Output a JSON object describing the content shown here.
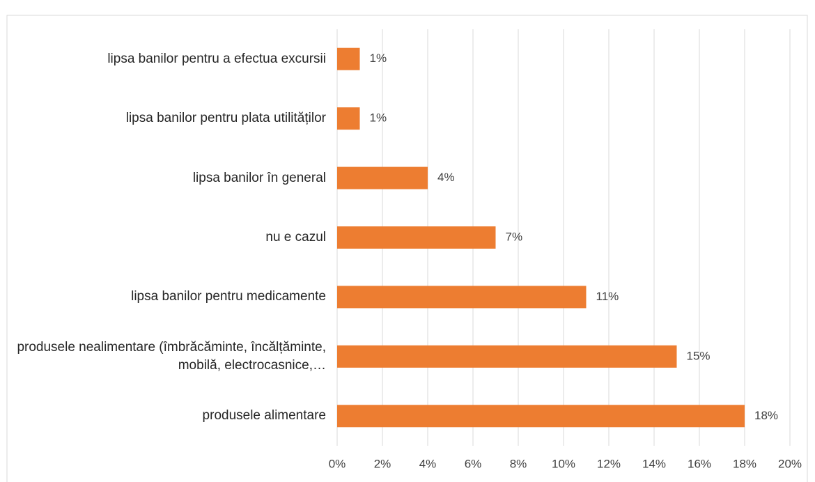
{
  "chart_data": {
    "type": "bar",
    "orientation": "horizontal",
    "categories": [
      "lipsa banilor pentru a efectua excursii",
      "lipsa banilor pentru plata utilităților",
      "lipsa banilor în general",
      "nu e cazul",
      "lipsa banilor pentru medicamente",
      "produsele nealimentare (îmbrăcăminte, încălțăminte, mobilă, electrocasnice,…",
      "produsele alimentare"
    ],
    "values": [
      1,
      1,
      4,
      7,
      11,
      15,
      18
    ],
    "value_labels": [
      "1%",
      "1%",
      "4%",
      "7%",
      "11%",
      "15%",
      "18%"
    ],
    "color": "#ed7d31",
    "xlim": [
      0,
      20
    ],
    "xticks": [
      {
        "value": 0,
        "label": "0%"
      },
      {
        "value": 2,
        "label": "2%"
      },
      {
        "value": 4,
        "label": "4%"
      },
      {
        "value": 6,
        "label": "6%"
      },
      {
        "value": 8,
        "label": "8%"
      },
      {
        "value": 10,
        "label": "10%"
      },
      {
        "value": 12,
        "label": "12%"
      },
      {
        "value": 14,
        "label": "14%"
      },
      {
        "value": 16,
        "label": "16%"
      },
      {
        "value": 18,
        "label": "18%"
      },
      {
        "value": 20,
        "label": "20%"
      }
    ],
    "grid": true
  }
}
